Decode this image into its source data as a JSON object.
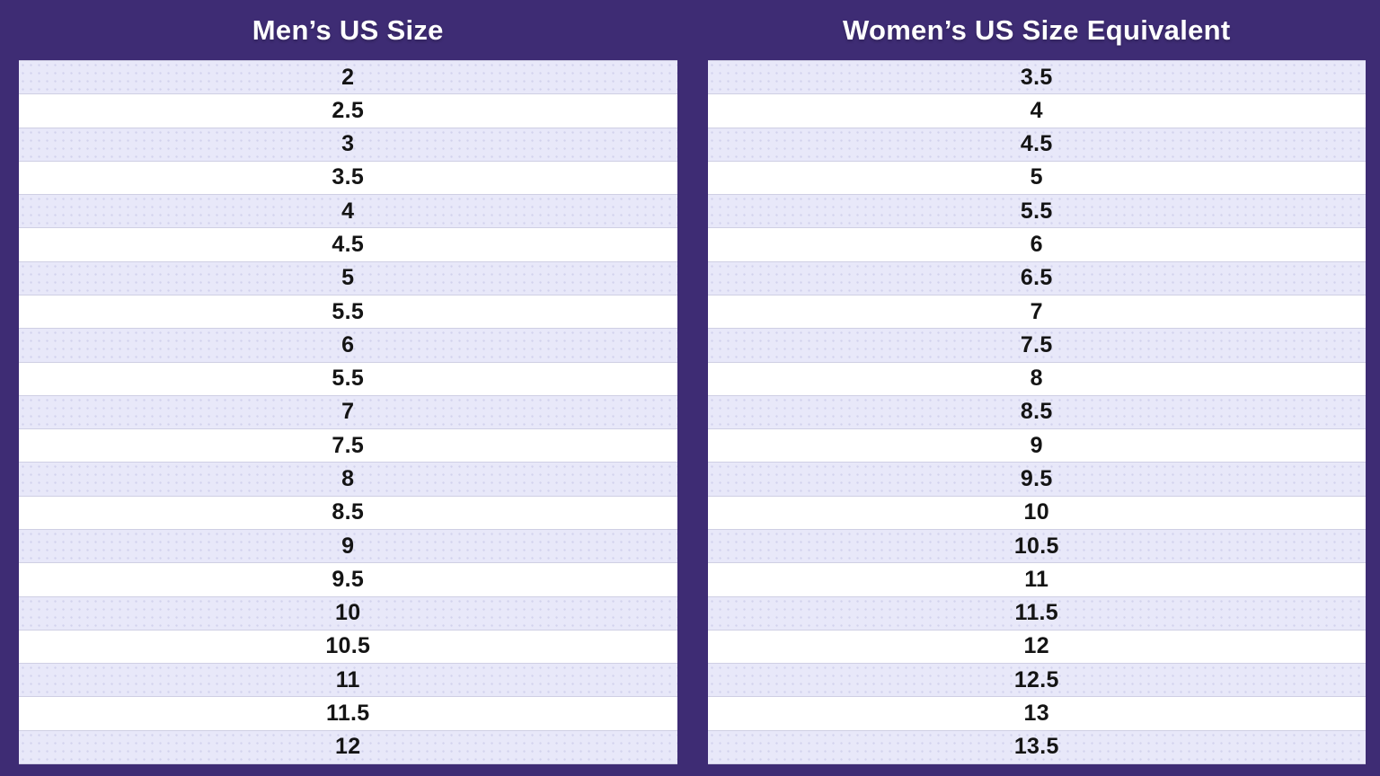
{
  "colors": {
    "background": "#3E2C74",
    "row_shaded": "#E8E8F9",
    "row_plain": "#FFFFFF",
    "row_border": "#CFCFE4",
    "header_text": "#FFFFFF",
    "cell_text": "#141414"
  },
  "tables": [
    {
      "id": "mens",
      "header": "Men’s US Size",
      "rows": [
        "2",
        "2.5",
        "3",
        "3.5",
        "4",
        "4.5",
        "5",
        "5.5",
        "6",
        "5.5",
        "7",
        "7.5",
        "8",
        "8.5",
        "9",
        "9.5",
        "10",
        "10.5",
        "11",
        "11.5",
        "12"
      ]
    },
    {
      "id": "womens",
      "header": "Women’s US Size Equivalent",
      "rows": [
        "3.5",
        "4",
        "4.5",
        "5",
        "5.5",
        "6",
        "6.5",
        "7",
        "7.5",
        "8",
        "8.5",
        "9",
        "9.5",
        "10",
        "10.5",
        "11",
        "11.5",
        "12",
        "12.5",
        "13",
        "13.5"
      ]
    }
  ],
  "chart_data": {
    "type": "table",
    "columns": [
      "Men’s US Size",
      "Women’s US Size Equivalent"
    ],
    "rows": [
      [
        "2",
        "3.5"
      ],
      [
        "2.5",
        "4"
      ],
      [
        "3",
        "4.5"
      ],
      [
        "3.5",
        "5"
      ],
      [
        "4",
        "5.5"
      ],
      [
        "4.5",
        "6"
      ],
      [
        "5",
        "6.5"
      ],
      [
        "5.5",
        "7"
      ],
      [
        "6",
        "7.5"
      ],
      [
        "5.5",
        "8"
      ],
      [
        "7",
        "8.5"
      ],
      [
        "7.5",
        "9"
      ],
      [
        "8",
        "9.5"
      ],
      [
        "8.5",
        "10"
      ],
      [
        "9",
        "10.5"
      ],
      [
        "9.5",
        "11"
      ],
      [
        "10",
        "11.5"
      ],
      [
        "10.5",
        "12"
      ],
      [
        "11",
        "12.5"
      ],
      [
        "11.5",
        "13"
      ],
      [
        "12",
        "13.5"
      ]
    ],
    "layout_hints": {
      "row_striping": "alternating lavender/white, first row lavender",
      "alignment": "center"
    }
  }
}
